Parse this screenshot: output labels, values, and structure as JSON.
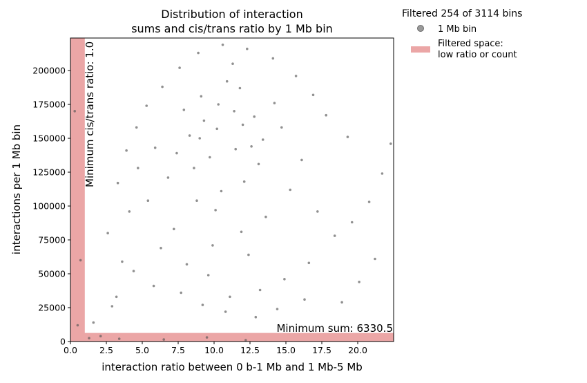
{
  "chart_data": {
    "type": "scatter",
    "title": "Distribution of interaction\nsums and cis/trans ratio by 1 Mb bin",
    "xlabel": "interaction ratio between 0 b-1 Mb and 1 Mb-5 Mb",
    "ylabel": "interactions per 1 Mb bin",
    "xlim": [
      0,
      22.5
    ],
    "ylim": [
      0,
      224000
    ],
    "x_ticks": [
      0.0,
      2.5,
      5.0,
      7.5,
      10.0,
      12.5,
      15.0,
      17.5,
      20.0
    ],
    "x_tick_labels": [
      "0.0",
      "2.5",
      "5.0",
      "7.5",
      "10.0",
      "12.5",
      "15.0",
      "17.5",
      "20.0"
    ],
    "y_ticks": [
      0,
      25000,
      50000,
      75000,
      100000,
      125000,
      150000,
      175000,
      200000
    ],
    "y_tick_labels": [
      "0",
      "25000",
      "50000",
      "75000",
      "100000",
      "125000",
      "150000",
      "175000",
      "200000"
    ],
    "grid": false,
    "legend": {
      "placement": "outside-top-right",
      "title": "Filtered 254 of 3114 bins",
      "entries": [
        "1 Mb bin",
        "Filtered space:\n low ratio or count"
      ]
    },
    "thresholds": {
      "min_ratio": 1.0,
      "min_ratio_label": "Minimum cis/trans ratio: 1.0",
      "min_sum": 6330.5,
      "min_sum_label": "Minimum sum: 6330.5"
    },
    "series": [
      {
        "name": "1 Mb bin",
        "color": "#555555",
        "points": [
          [
            10.2,
            157000
          ],
          [
            11.5,
            142000
          ],
          [
            9.1,
            181000
          ],
          [
            12.8,
            166000
          ],
          [
            8.6,
            128000
          ],
          [
            13.4,
            149000
          ],
          [
            10.9,
            192000
          ],
          [
            7.9,
            171000
          ],
          [
            12.1,
            118000
          ],
          [
            11.3,
            205000
          ],
          [
            9.7,
            136000
          ],
          [
            14.2,
            176000
          ],
          [
            8.3,
            152000
          ],
          [
            13.1,
            131000
          ],
          [
            10.5,
            111000
          ],
          [
            11.8,
            187000
          ],
          [
            9.3,
            163000
          ],
          [
            12.6,
            144000
          ],
          [
            7.4,
            139000
          ],
          [
            14.7,
            158000
          ],
          [
            10.1,
            97000
          ],
          [
            11.9,
            81000
          ],
          [
            8.8,
            104000
          ],
          [
            13.6,
            92000
          ],
          [
            9.9,
            71000
          ],
          [
            12.4,
            64000
          ],
          [
            15.3,
            112000
          ],
          [
            16.1,
            134000
          ],
          [
            6.8,
            121000
          ],
          [
            5.9,
            143000
          ],
          [
            17.2,
            96000
          ],
          [
            18.4,
            78000
          ],
          [
            16.6,
            58000
          ],
          [
            14.9,
            46000
          ],
          [
            13.2,
            38000
          ],
          [
            11.1,
            33000
          ],
          [
            9.6,
            49000
          ],
          [
            8.1,
            57000
          ],
          [
            7.2,
            83000
          ],
          [
            6.3,
            69000
          ],
          [
            5.4,
            104000
          ],
          [
            4.7,
            128000
          ],
          [
            4.1,
            96000
          ],
          [
            3.6,
            59000
          ],
          [
            3.2,
            33000
          ],
          [
            2.9,
            26000
          ],
          [
            4.4,
            52000
          ],
          [
            5.8,
            41000
          ],
          [
            7.7,
            36000
          ],
          [
            9.2,
            27000
          ],
          [
            10.8,
            22000
          ],
          [
            12.9,
            18000
          ],
          [
            14.4,
            24000
          ],
          [
            16.3,
            31000
          ],
          [
            18.9,
            29000
          ],
          [
            20.1,
            44000
          ],
          [
            21.2,
            61000
          ],
          [
            19.6,
            88000
          ],
          [
            20.8,
            103000
          ],
          [
            21.7,
            124000
          ],
          [
            22.3,
            146000
          ],
          [
            19.3,
            151000
          ],
          [
            17.8,
            167000
          ],
          [
            16.9,
            182000
          ],
          [
            15.7,
            196000
          ],
          [
            14.1,
            209000
          ],
          [
            12.3,
            216000
          ],
          [
            10.6,
            219000
          ],
          [
            8.9,
            213000
          ],
          [
            7.6,
            202000
          ],
          [
            6.4,
            188000
          ],
          [
            5.3,
            174000
          ],
          [
            4.6,
            158000
          ],
          [
            3.9,
            141000
          ],
          [
            3.3,
            117000
          ],
          [
            2.6,
            80000
          ],
          [
            1.6,
            14000
          ],
          [
            1.3,
            2500
          ],
          [
            2.1,
            4000
          ],
          [
            3.4,
            2000
          ],
          [
            6.5,
            1500
          ],
          [
            9.5,
            3000
          ],
          [
            12.2,
            1000
          ],
          [
            0.5,
            12000
          ],
          [
            0.3,
            170000
          ],
          [
            0.7,
            60000
          ],
          [
            11.4,
            170000
          ],
          [
            10.3,
            175000
          ],
          [
            12.0,
            160000
          ],
          [
            9.0,
            150000
          ]
        ]
      }
    ]
  }
}
